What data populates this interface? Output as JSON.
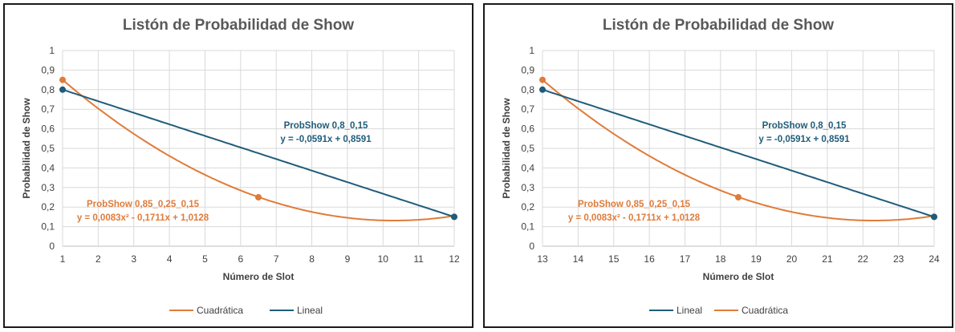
{
  "colors": {
    "quadratic": "#E07B39",
    "linear": "#1F5C7A",
    "grid": "#D9D9D9",
    "axis": "#BFBFBF"
  },
  "chart_data": [
    {
      "type": "line",
      "title": "Listón de Probabilidad de Show",
      "xlabel": "Número de Slot",
      "ylabel": "Probabilidad de Show",
      "xlim": [
        1,
        12
      ],
      "ylim": [
        0,
        1
      ],
      "x_ticks": [
        "1",
        "2",
        "3",
        "4",
        "5",
        "6",
        "7",
        "8",
        "9",
        "10",
        "11",
        "12"
      ],
      "y_ticks": [
        "0",
        "0,1",
        "0,2",
        "0,3",
        "0,4",
        "0,5",
        "0,6",
        "0,7",
        "0,8",
        "0,9",
        "1"
      ],
      "grid": true,
      "legend_position": "bottom",
      "legend": [
        "Cuadrática",
        "Lineal"
      ],
      "series": [
        {
          "name": "Cuadrática",
          "color_key": "quadratic",
          "kind": "quadratic",
          "coefficients": {
            "a": 0.0083,
            "b": -0.1711,
            "c": 1.0128
          },
          "x_offset": 0,
          "points": [
            [
              1,
              0.85
            ],
            [
              6.5,
              0.25
            ],
            [
              12,
              0.15
            ]
          ],
          "label_name": "ProbShow 0,85_0,25_0,15",
          "label_equation": "y = 0,0083x² - 0,1711x + 1,0128"
        },
        {
          "name": "Lineal",
          "color_key": "linear",
          "kind": "linear",
          "coefficients": {
            "m": -0.0591,
            "b": 0.8591
          },
          "x_offset": 0,
          "points": [
            [
              1,
              0.8
            ],
            [
              12,
              0.15
            ]
          ],
          "label_name": "ProbShow 0,8_0,15",
          "label_equation": "y = -0,0591x + 0,8591"
        }
      ]
    },
    {
      "type": "line",
      "title": "Listón de Probabilidad de Show",
      "xlabel": "Número de Slot",
      "ylabel": "Probabilidad de Show",
      "xlim": [
        13,
        24
      ],
      "ylim": [
        0,
        1
      ],
      "x_ticks": [
        "13",
        "14",
        "15",
        "16",
        "17",
        "18",
        "19",
        "20",
        "21",
        "22",
        "23",
        "24"
      ],
      "y_ticks": [
        "0",
        "0,1",
        "0,2",
        "0,3",
        "0,4",
        "0,5",
        "0,6",
        "0,7",
        "0,8",
        "0,9",
        "1"
      ],
      "grid": true,
      "legend_position": "bottom",
      "legend": [
        "Lineal",
        "Cuadrática"
      ],
      "series": [
        {
          "name": "Cuadrática",
          "color_key": "quadratic",
          "kind": "quadratic",
          "coefficients": {
            "a": 0.0083,
            "b": -0.1711,
            "c": 1.0128
          },
          "x_offset": 12,
          "points": [
            [
              13,
              0.85
            ],
            [
              18.5,
              0.25
            ],
            [
              24,
              0.15
            ]
          ],
          "label_name": "ProbShow 0,85_0,25_0,15",
          "label_equation": "y = 0,0083x² - 0,1711x + 1,0128"
        },
        {
          "name": "Lineal",
          "color_key": "linear",
          "kind": "linear",
          "coefficients": {
            "m": -0.0591,
            "b": 0.8591
          },
          "x_offset": 12,
          "points": [
            [
              13,
              0.8
            ],
            [
              24,
              0.15
            ]
          ],
          "label_name": "ProbShow 0,8_0,15",
          "label_equation": "y = -0,0591x + 0,8591"
        }
      ]
    }
  ]
}
